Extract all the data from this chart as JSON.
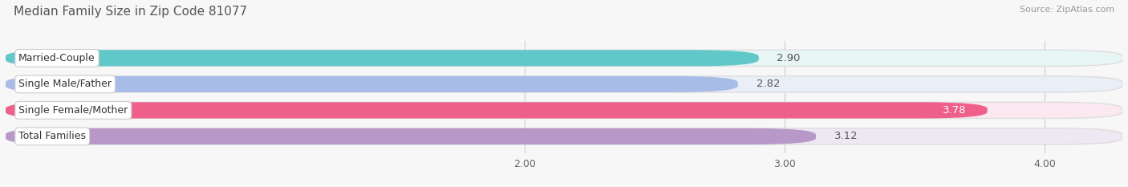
{
  "title": "Median Family Size in Zip Code 81077",
  "source": "Source: ZipAtlas.com",
  "categories": [
    "Married-Couple",
    "Single Male/Father",
    "Single Female/Mother",
    "Total Families"
  ],
  "values": [
    2.9,
    2.82,
    3.78,
    3.12
  ],
  "bar_colors": [
    "#60c8c8",
    "#a8bce8",
    "#ee5f8a",
    "#b898c8"
  ],
  "bar_bg_colors": [
    "#e8f5f5",
    "#eaeef8",
    "#fce8f0",
    "#ede8f2"
  ],
  "value_text_colors": [
    "#555555",
    "#555555",
    "#ffffff",
    "#555555"
  ],
  "xlim": [
    0,
    4.3
  ],
  "xstart": 0,
  "xticks": [
    2.0,
    3.0,
    4.0
  ],
  "xtick_labels": [
    "2.00",
    "3.00",
    "4.00"
  ],
  "title_fontsize": 11,
  "source_fontsize": 8,
  "label_fontsize": 9,
  "value_fontsize": 9.5,
  "tick_fontsize": 9,
  "bar_height": 0.62,
  "figsize": [
    14.06,
    2.33
  ],
  "dpi": 100,
  "fig_bg": "#f7f7f7",
  "ax_bg": "#f7f7f7"
}
